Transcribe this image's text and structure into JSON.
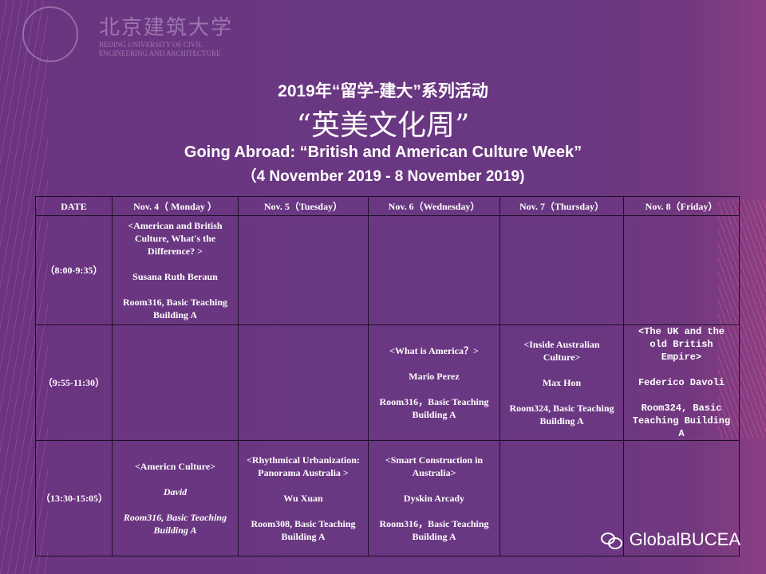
{
  "logo": {
    "cn": "北京建筑大学",
    "en_line1": "BEIJING UNIVERSITY OF CIVIL",
    "en_line2": "ENGINEERING AND ARCHITECTURE"
  },
  "header": {
    "line1": "2019年“留学-建大”系列活动",
    "line2": "“英美文化周”",
    "line3": "Going Abroad: “British and American Culture Week”",
    "line4": "（4 November 2019 - 8 November 2019)"
  },
  "table": {
    "headers": [
      "DATE",
      "Nov. 4（ Monday ）",
      "Nov. 5（Tuesday）",
      "Nov. 6（Wednesday）",
      "Nov. 7（Thursday）",
      "Nov. 8（Friday）"
    ],
    "rows": [
      {
        "time": "（8:00-9:35）",
        "cells": [
          {
            "title": "<American and British Culture, What's the Difference? >",
            "speaker": "Susana Ruth Beraun",
            "room": "Room316, Basic Teaching Building A"
          },
          null,
          null,
          null,
          null
        ]
      },
      {
        "time": "（9:55-11:30）",
        "cells": [
          null,
          null,
          {
            "title": "<What is America？>",
            "speaker": "Mario Perez",
            "room": "Room316，Basic Teaching Building A"
          },
          {
            "title": "<Inside Australian Culture>",
            "speaker": "Max Hon",
            "room": "Room324, Basic Teaching Building A"
          },
          {
            "title": "<The UK and the old British Empire>",
            "speaker": "Federico Davoli",
            "room": "Room324, Basic Teaching Building A"
          }
        ]
      },
      {
        "time": "（13:30-15:05）",
        "cells": [
          {
            "title": "<Americn Culture>",
            "speaker": "David",
            "room": "Room316, Basic Teaching Building A"
          },
          {
            "title": "<Rhythmical Urbanization: Panorama Australia >",
            "speaker": "Wu Xuan",
            "room": "Room308, Basic Teaching Building A"
          },
          {
            "title": "<Smart Construction in Australia>",
            "speaker": "Dyskin Arcady",
            "room": "Room316，Basic Teaching Building A"
          },
          null,
          null
        ]
      }
    ]
  },
  "watermark": {
    "text": "GlobalBUCEA",
    "icon": "wechat-icon"
  },
  "colors": {
    "background": "#6a3782",
    "border": "#1e0e24",
    "text": "#ffffff"
  }
}
